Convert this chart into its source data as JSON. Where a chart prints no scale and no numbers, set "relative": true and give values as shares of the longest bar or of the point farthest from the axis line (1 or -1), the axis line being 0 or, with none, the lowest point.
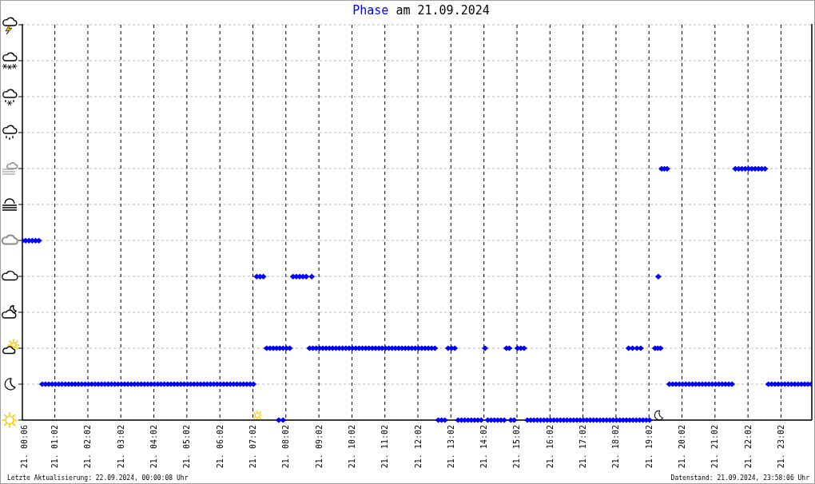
{
  "chart_data": {
    "type": "scatter",
    "title": "Phase am 21.09.2024",
    "annotations": [
      "Letzte Aktualisierung: 22.09.2024, 00:00:08 Uhr",
      "Datenstand: 21.09.2024, 23:58:06 Uhr"
    ],
    "x": [
      "2024-09-21T00:03",
      "2024-09-21T00:09",
      "2024-09-21T00:15",
      "2024-09-21T00:21",
      "2024-09-21T00:27",
      "2024-09-21T00:33",
      "2024-09-21T00:39",
      "2024-09-21T00:45",
      "2024-09-21T00:51",
      "2024-09-21T00:57",
      "2024-09-21T01:03",
      "2024-09-21T01:09",
      "2024-09-21T01:15",
      "2024-09-21T01:21",
      "2024-09-21T01:27",
      "2024-09-21T01:33",
      "2024-09-21T01:39",
      "2024-09-21T01:45",
      "2024-09-21T01:51",
      "2024-09-21T01:57",
      "2024-09-21T02:03",
      "2024-09-21T02:09",
      "2024-09-21T02:15",
      "2024-09-21T02:21",
      "2024-09-21T02:27",
      "2024-09-21T02:33",
      "2024-09-21T02:39",
      "2024-09-21T02:45",
      "2024-09-21T02:51",
      "2024-09-21T02:57",
      "2024-09-21T03:03",
      "2024-09-21T03:09",
      "2024-09-21T03:15",
      "2024-09-21T03:21",
      "2024-09-21T03:27",
      "2024-09-21T03:33",
      "2024-09-21T03:39",
      "2024-09-21T03:45",
      "2024-09-21T03:51",
      "2024-09-21T03:57",
      "2024-09-21T04:03",
      "2024-09-21T04:09",
      "2024-09-21T04:15",
      "2024-09-21T04:21",
      "2024-09-21T04:27",
      "2024-09-21T04:33",
      "2024-09-21T04:39",
      "2024-09-21T04:45",
      "2024-09-21T04:51",
      "2024-09-21T04:57",
      "2024-09-21T05:03",
      "2024-09-21T05:09",
      "2024-09-21T05:15",
      "2024-09-21T05:21",
      "2024-09-21T05:27",
      "2024-09-21T05:33",
      "2024-09-21T05:39",
      "2024-09-21T05:45",
      "2024-09-21T05:51",
      "2024-09-21T05:57",
      "2024-09-21T06:03",
      "2024-09-21T06:09",
      "2024-09-21T06:15",
      "2024-09-21T06:21",
      "2024-09-21T06:27",
      "2024-09-21T06:33",
      "2024-09-21T06:39",
      "2024-09-21T06:45",
      "2024-09-21T06:51",
      "2024-09-21T06:57",
      "2024-09-21T07:03",
      "2024-09-21T07:09",
      "2024-09-21T07:15",
      "2024-09-21T07:21",
      "2024-09-21T07:27",
      "2024-09-21T07:33",
      "2024-09-21T07:39",
      "2024-09-21T07:45",
      "2024-09-21T07:51",
      "2024-09-21T07:57",
      "2024-09-21T08:03",
      "2024-09-21T08:09",
      "2024-09-21T07:49",
      "2024-09-21T07:57",
      "2024-09-21T08:15",
      "2024-09-21T08:21",
      "2024-09-21T08:27",
      "2024-09-21T08:33",
      "2024-09-21T08:39",
      "2024-09-21T08:49",
      "2024-09-21T08:45",
      "2024-09-21T08:51",
      "2024-09-21T08:57",
      "2024-09-21T09:03",
      "2024-09-21T09:09",
      "2024-09-21T09:15",
      "2024-09-21T09:21",
      "2024-09-21T09:27",
      "2024-09-21T09:33",
      "2024-09-21T09:39",
      "2024-09-21T09:45",
      "2024-09-21T09:51",
      "2024-09-21T09:57",
      "2024-09-21T10:03",
      "2024-09-21T10:09",
      "2024-09-21T10:15",
      "2024-09-21T10:21",
      "2024-09-21T10:27",
      "2024-09-21T10:33",
      "2024-09-21T10:39",
      "2024-09-21T10:45",
      "2024-09-21T10:51",
      "2024-09-21T10:57",
      "2024-09-21T11:03",
      "2024-09-21T11:09",
      "2024-09-21T11:15",
      "2024-09-21T11:21",
      "2024-09-21T11:27",
      "2024-09-21T11:33",
      "2024-09-21T11:39",
      "2024-09-21T11:45",
      "2024-09-21T11:51",
      "2024-09-21T11:57",
      "2024-09-21T12:03",
      "2024-09-21T12:09",
      "2024-09-21T12:15",
      "2024-09-21T12:21",
      "2024-09-21T12:27",
      "2024-09-21T12:33",
      "2024-09-21T12:39",
      "2024-09-21T12:45",
      "2024-09-21T12:51",
      "2024-09-21T12:57",
      "2024-09-21T13:03",
      "2024-09-21T13:09",
      "2024-09-21T13:15",
      "2024-09-21T13:21",
      "2024-09-21T13:27",
      "2024-09-21T13:33",
      "2024-09-21T13:39",
      "2024-09-21T13:45",
      "2024-09-21T13:51",
      "2024-09-21T13:57",
      "2024-09-21T14:04",
      "2024-09-21T14:09",
      "2024-09-21T14:15",
      "2024-09-21T14:21",
      "2024-09-21T14:27",
      "2024-09-21T14:33",
      "2024-09-21T14:39",
      "2024-09-21T14:43",
      "2024-09-21T14:48",
      "2024-09-21T14:51",
      "2024-09-21T14:57",
      "2024-09-21T15:03",
      "2024-09-21T15:09",
      "2024-09-21T15:15",
      "2024-09-21T15:21",
      "2024-09-21T15:27",
      "2024-09-21T15:33",
      "2024-09-21T15:39",
      "2024-09-21T15:45",
      "2024-09-21T15:51",
      "2024-09-21T15:57",
      "2024-09-21T16:03",
      "2024-09-21T16:09",
      "2024-09-21T16:15",
      "2024-09-21T16:21",
      "2024-09-21T16:27",
      "2024-09-21T16:33",
      "2024-09-21T16:39",
      "2024-09-21T16:45",
      "2024-09-21T16:51",
      "2024-09-21T16:57",
      "2024-09-21T17:03",
      "2024-09-21T17:09",
      "2024-09-21T17:15",
      "2024-09-21T17:21",
      "2024-09-21T17:27",
      "2024-09-21T17:33",
      "2024-09-21T17:39",
      "2024-09-21T17:45",
      "2024-09-21T17:51",
      "2024-09-21T17:57",
      "2024-09-21T18:03",
      "2024-09-21T18:09",
      "2024-09-21T18:15",
      "2024-09-21T18:21",
      "2024-09-21T18:27",
      "2024-09-21T18:33",
      "2024-09-21T18:39",
      "2024-09-21T18:45",
      "2024-09-21T18:51",
      "2024-09-21T18:57",
      "2024-09-21T19:03",
      "2024-09-21T18:25",
      "2024-09-21T18:32",
      "2024-09-21T18:40",
      "2024-09-21T18:47",
      "2024-09-21T19:13",
      "2024-09-21T19:18",
      "2024-09-21T19:23",
      "2024-09-21T19:19",
      "2024-09-21T19:25",
      "2024-09-21T19:30",
      "2024-09-21T19:35",
      "2024-09-21T19:39",
      "2024-09-21T19:45",
      "2024-09-21T19:51",
      "2024-09-21T19:57",
      "2024-09-21T20:03",
      "2024-09-21T20:09",
      "2024-09-21T20:15",
      "2024-09-21T20:21",
      "2024-09-21T20:27",
      "2024-09-21T20:33",
      "2024-09-21T20:39",
      "2024-09-21T20:45",
      "2024-09-21T20:51",
      "2024-09-21T20:57",
      "2024-09-21T21:03",
      "2024-09-21T21:09",
      "2024-09-21T21:15",
      "2024-09-21T21:21",
      "2024-09-21T21:27",
      "2024-09-21T21:33",
      "2024-09-21T21:39",
      "2024-09-21T21:45",
      "2024-09-21T21:51",
      "2024-09-21T21:57",
      "2024-09-21T22:03",
      "2024-09-21T22:09",
      "2024-09-21T22:15",
      "2024-09-21T22:21",
      "2024-09-21T22:27",
      "2024-09-21T22:33",
      "2024-09-21T22:39",
      "2024-09-21T22:45",
      "2024-09-21T22:51",
      "2024-09-21T22:57",
      "2024-09-21T23:03",
      "2024-09-21T23:09",
      "2024-09-21T23:15",
      "2024-09-21T23:21",
      "2024-09-21T23:27",
      "2024-09-21T23:33",
      "2024-09-21T23:39",
      "2024-09-21T23:45",
      "2024-09-21T23:51",
      "2024-09-21T23:57"
    ],
    "values": [
      0.714,
      0.714,
      0.714,
      0.714,
      0.714,
      0.714,
      0.143,
      0.143,
      0.143,
      0.143,
      0.143,
      0.143,
      0.143,
      0.143,
      0.143,
      0.143,
      0.143,
      0.143,
      0.143,
      0.143,
      0.143,
      0.143,
      0.143,
      0.143,
      0.143,
      0.143,
      0.143,
      0.143,
      0.143,
      0.143,
      0.143,
      0.143,
      0.143,
      0.143,
      0.143,
      0.143,
      0.143,
      0.143,
      0.143,
      0.143,
      0.143,
      0.143,
      0.143,
      0.143,
      0.143,
      0.143,
      0.143,
      0.143,
      0.143,
      0.143,
      0.143,
      0.143,
      0.143,
      0.143,
      0.143,
      0.143,
      0.143,
      0.143,
      0.143,
      0.143,
      0.143,
      0.143,
      0.143,
      0.143,
      0.143,
      0.143,
      0.143,
      0.143,
      0.143,
      0.143,
      0.143,
      0.571,
      0.571,
      0.571,
      0.286,
      0.286,
      0.286,
      0.286,
      0.286,
      0.286,
      0.286,
      0.286,
      0,
      0,
      0.571,
      0.571,
      0.571,
      0.571,
      0.571,
      0.571,
      0.286,
      0.286,
      0.286,
      0.286,
      0.286,
      0.286,
      0.286,
      0.286,
      0.286,
      0.286,
      0.286,
      0.286,
      0.286,
      0.286,
      0.286,
      0.286,
      0.286,
      0.286,
      0.286,
      0.286,
      0.286,
      0.286,
      0.286,
      0.286,
      0.286,
      0.286,
      0.286,
      0.286,
      0.286,
      0.286,
      0.286,
      0.286,
      0.286,
      0.286,
      0.286,
      0.286,
      0.286,
      0.286,
      0.286,
      0,
      0,
      0,
      0.286,
      0.286,
      0.286,
      0,
      0,
      0,
      0,
      0,
      0,
      0,
      0,
      0.286,
      0,
      0,
      0,
      0,
      0,
      0,
      0.286,
      0.286,
      0,
      0,
      0.286,
      0.286,
      0.286,
      0,
      0,
      0,
      0,
      0,
      0,
      0,
      0,
      0,
      0,
      0,
      0,
      0,
      0,
      0,
      0,
      0,
      0,
      0,
      0,
      0,
      0,
      0,
      0,
      0,
      0,
      0,
      0,
      0,
      0,
      0,
      0,
      0,
      0,
      0,
      0,
      0,
      0,
      0.286,
      0.286,
      0.286,
      0.286,
      0.286,
      0.286,
      0.286,
      0.571,
      1,
      1,
      1,
      0.143,
      0.143,
      0.143,
      0.143,
      0.143,
      0.143,
      0.143,
      0.143,
      0.143,
      0.143,
      0.143,
      0.143,
      0.143,
      0.143,
      0.143,
      0.143,
      0.143,
      0.143,
      0.143,
      0.143,
      1,
      1,
      1,
      1,
      1,
      1,
      1,
      1,
      1,
      1,
      0.143,
      0.143,
      0.143,
      0.143,
      0.143,
      0.143,
      0.143,
      0.143,
      0.143,
      0.143,
      0.143,
      0.143,
      0.143,
      0.143
    ],
    "color": "#0000ff",
    "marker": "diamond",
    "relative": true,
    "grid": true,
    "xlim": [
      "2024-09-21T00:03",
      "2024-09-21T23:58"
    ],
    "xticks": [
      {
        "value": "2024-09-21T00:06",
        "label": "21. 00:06"
      },
      {
        "value": "2024-09-21T01:02",
        "label": "21. 01:02"
      },
      {
        "value": "2024-09-21T02:02",
        "label": "21. 02:02"
      },
      {
        "value": "2024-09-21T03:02",
        "label": "21. 03:02"
      },
      {
        "value": "2024-09-21T04:02",
        "label": "21. 04:02"
      },
      {
        "value": "2024-09-21T05:02",
        "label": "21. 05:02"
      },
      {
        "value": "2024-09-21T06:02",
        "label": "21. 06:02"
      },
      {
        "value": "2024-09-21T07:02",
        "label": "21. 07:02"
      },
      {
        "value": "2024-09-21T08:02",
        "label": "21. 08:02"
      },
      {
        "value": "2024-09-21T09:02",
        "label": "21. 09:02"
      },
      {
        "value": "2024-09-21T10:02",
        "label": "21. 10:02"
      },
      {
        "value": "2024-09-21T11:02",
        "label": "21. 11:02"
      },
      {
        "value": "2024-09-21T12:02",
        "label": "21. 12:02"
      },
      {
        "value": "2024-09-21T13:02",
        "label": "21. 13:02"
      },
      {
        "value": "2024-09-21T14:02",
        "label": "21. 14:02"
      },
      {
        "value": "2024-09-21T15:02",
        "label": "21. 15:02"
      },
      {
        "value": "2024-09-21T16:02",
        "label": "21. 16:02"
      },
      {
        "value": "2024-09-21T17:02",
        "label": "21. 17:02"
      },
      {
        "value": "2024-09-21T18:02",
        "label": "21. 18:02"
      },
      {
        "value": "2024-09-21T19:02",
        "label": "21. 19:02"
      },
      {
        "value": "2024-09-21T20:02",
        "label": "21. 20:02"
      },
      {
        "value": "2024-09-21T21:02",
        "label": "21. 21:02"
      },
      {
        "value": "2024-09-21T22:02",
        "label": "21. 22:02"
      },
      {
        "value": "2024-09-21T23:02",
        "label": "21. 23:02"
      }
    ]
  }
}
